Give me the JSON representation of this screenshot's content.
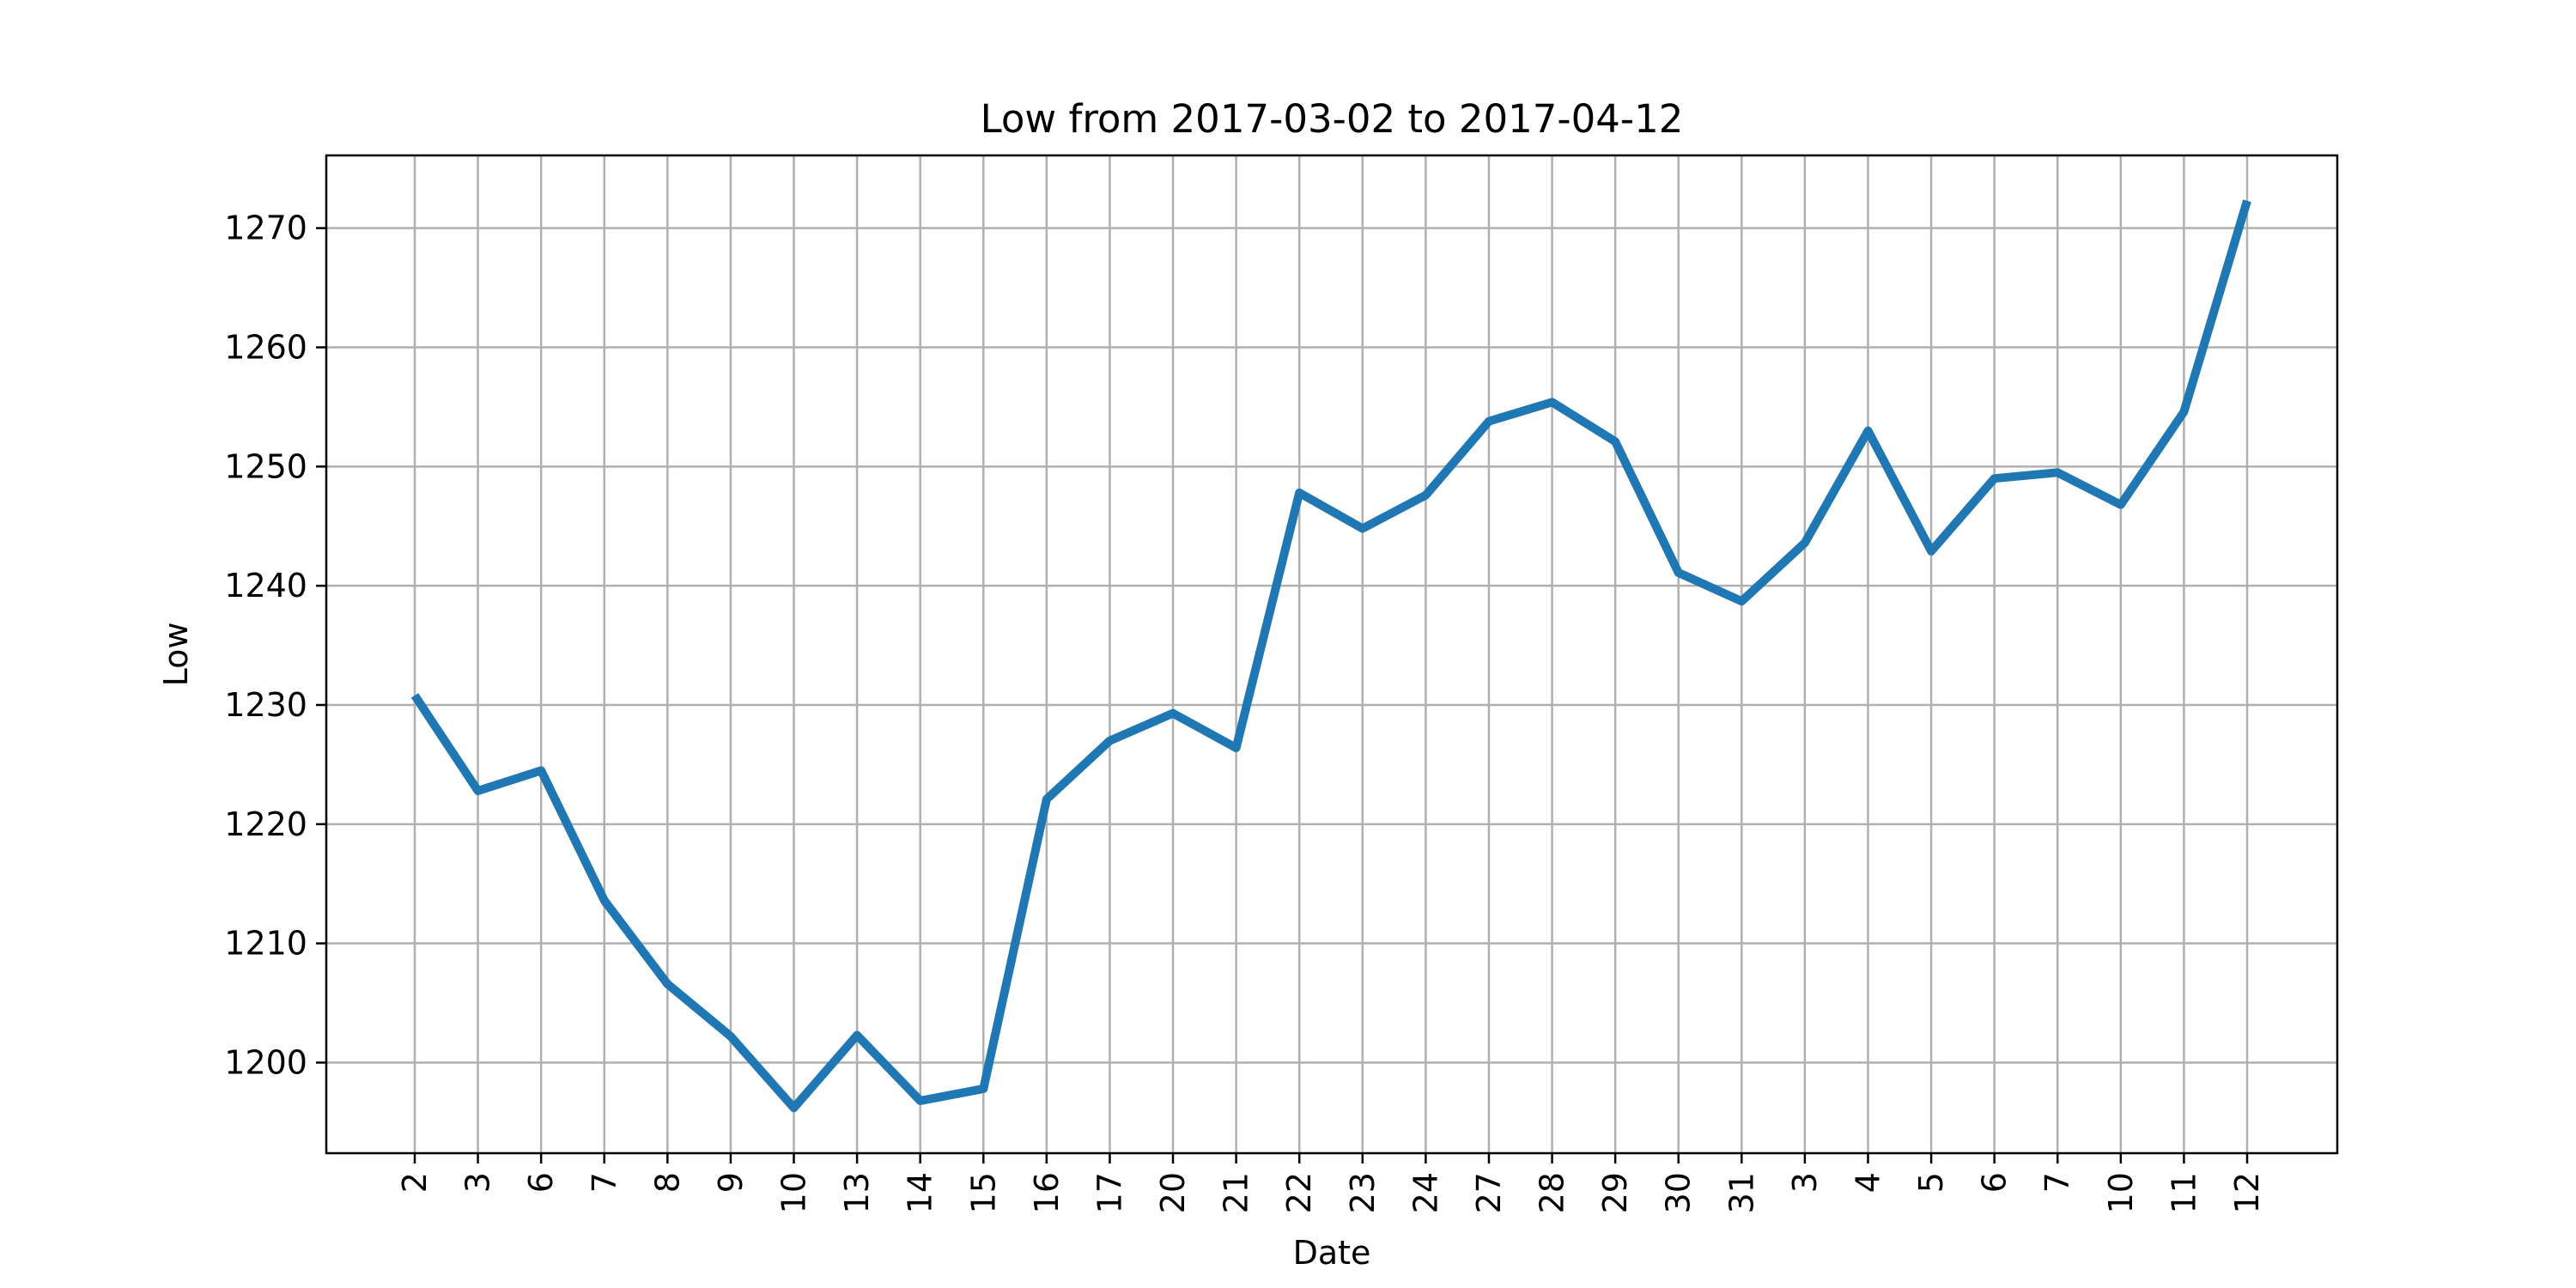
{
  "chart_data": {
    "type": "line",
    "title": "Low from 2017-03-02 to 2017-04-12",
    "xlabel": "Date",
    "ylabel": "Low",
    "x": [
      "2017-03-02",
      "2017-03-03",
      "2017-03-06",
      "2017-03-07",
      "2017-03-08",
      "2017-03-09",
      "2017-03-10",
      "2017-03-13",
      "2017-03-14",
      "2017-03-15",
      "2017-03-16",
      "2017-03-17",
      "2017-03-20",
      "2017-03-21",
      "2017-03-22",
      "2017-03-23",
      "2017-03-24",
      "2017-03-27",
      "2017-03-28",
      "2017-03-29",
      "2017-03-30",
      "2017-03-31",
      "2017-04-03",
      "2017-04-04",
      "2017-04-05",
      "2017-04-06",
      "2017-04-07",
      "2017-04-10",
      "2017-04-11",
      "2017-04-12"
    ],
    "tick_labels": [
      "2",
      "3",
      "6",
      "7",
      "8",
      "9",
      "10",
      "13",
      "14",
      "15",
      "16",
      "17",
      "20",
      "21",
      "22",
      "23",
      "24",
      "27",
      "28",
      "29",
      "30",
      "31",
      "3",
      "4",
      "5",
      "6",
      "7",
      "10",
      "11",
      "12"
    ],
    "series": [
      {
        "values": [
          1230.8,
          1222.8,
          1224.5,
          1213.6,
          1206.6,
          1202.2,
          1196.2,
          1202.3,
          1196.8,
          1197.8,
          1222.1,
          1227.0,
          1229.3,
          1226.4,
          1247.8,
          1244.8,
          1247.6,
          1253.8,
          1255.4,
          1252.1,
          1241.1,
          1238.7,
          1243.6,
          1253.0,
          1242.9,
          1249.0,
          1249.5,
          1246.8,
          1254.6,
          1272.3
        ],
        "color": "#1f77b4"
      }
    ],
    "y_ticks": [
      1200,
      1210,
      1220,
      1230,
      1240,
      1250,
      1260,
      1270
    ],
    "ylim": [
      1192.4,
      1276.1
    ],
    "grid": true,
    "legend": "none"
  }
}
